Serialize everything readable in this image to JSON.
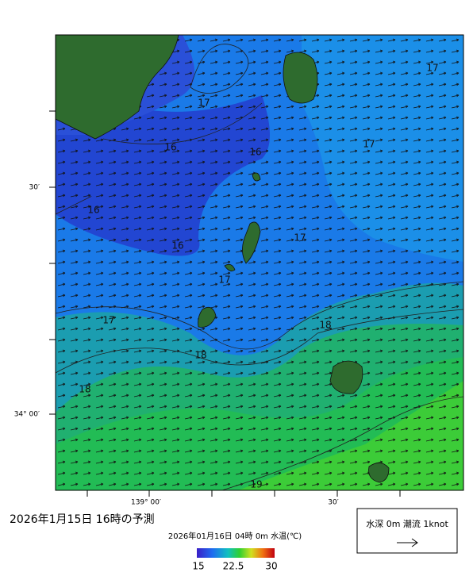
{
  "title": "2026年1月15日 16時の予測",
  "subtitle": "2026年01月16日 04時 0m 水温(℃)",
  "axis": {
    "left": [
      "30′",
      "34° 00′"
    ],
    "bottom": [
      "139° 00′",
      "30′"
    ]
  },
  "colorbar": {
    "labels": [
      "15",
      "22.5",
      "30"
    ]
  },
  "legend": "水深 0m 潮流 1knot",
  "contour_labels": [
    "17",
    "17",
    "17",
    "16",
    "16",
    "16",
    "16",
    "17",
    "17",
    "17",
    "18",
    "18",
    "18",
    "19"
  ]
}
